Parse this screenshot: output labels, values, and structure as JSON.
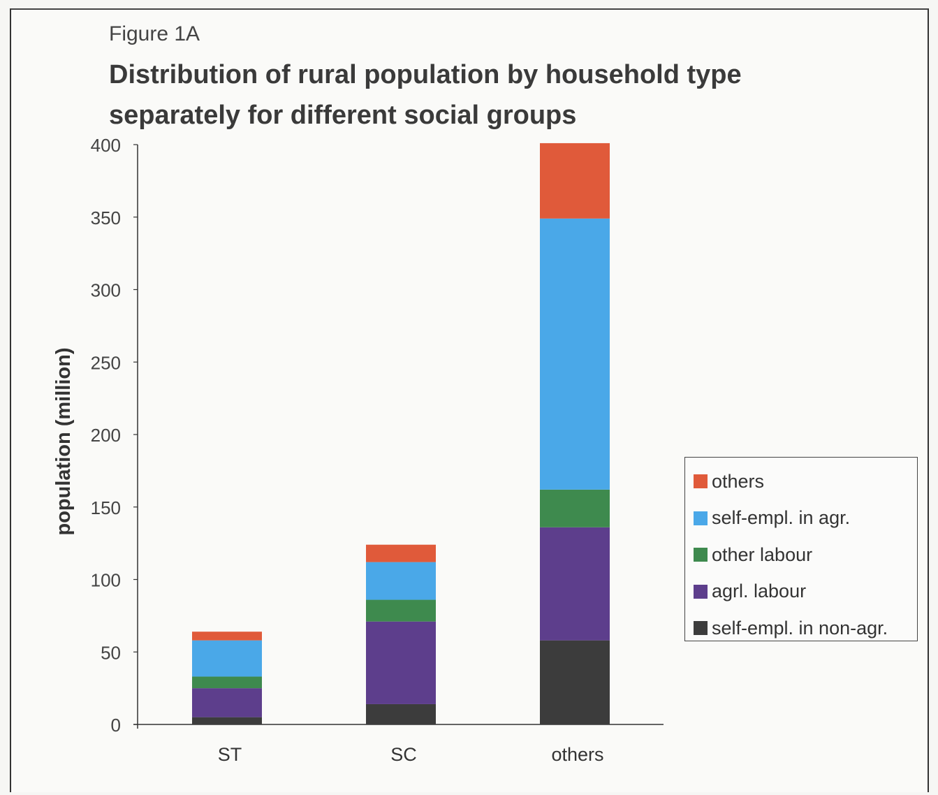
{
  "figure_label": "Figure 1A",
  "chart_data": {
    "type": "bar",
    "stacked": true,
    "title": "Distribution of rural population by household type separately for different social groups",
    "title_lines": [
      "Distribution of rural population by household type",
      "separately for different social groups"
    ],
    "xlabel": "",
    "ylabel": "population (million)",
    "ylim": [
      0,
      400
    ],
    "yticks": [
      0,
      50,
      100,
      150,
      200,
      250,
      300,
      350,
      400
    ],
    "ytick_labels": [
      "0",
      "50",
      "100",
      "150",
      "200",
      "250",
      "300",
      "350",
      "400"
    ],
    "categories": [
      "ST",
      "SC",
      "others"
    ],
    "grid": false,
    "legend_position": "right",
    "series": [
      {
        "name": "self-empl. in non-agr.",
        "color": "#3c3c3c",
        "values": [
          5,
          14,
          58
        ]
      },
      {
        "name": "agrl. labour",
        "color": "#5d3e8c",
        "values": [
          20,
          57,
          78
        ]
      },
      {
        "name": "other labour",
        "color": "#3e8a4e",
        "values": [
          8,
          15,
          26
        ]
      },
      {
        "name": "self-empl. in agr.",
        "color": "#4aa8e8",
        "values": [
          25,
          26,
          187
        ]
      },
      {
        "name": "others",
        "color": "#e05a3a",
        "values": [
          6,
          12,
          52
        ]
      }
    ],
    "legend_order": [
      "others",
      "self-empl. in agr.",
      "other labour",
      "agrl. labour",
      "self-empl. in non-agr."
    ]
  }
}
